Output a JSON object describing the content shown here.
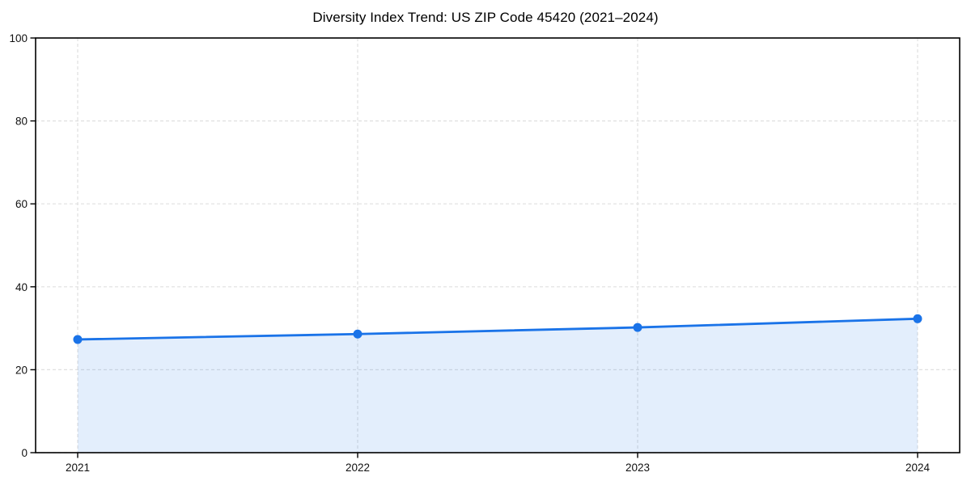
{
  "figure": {
    "background": "#ffffff"
  },
  "chart_data": {
    "type": "area",
    "title": "Diversity Index Trend: US ZIP Code 45420 (2021–2024)",
    "categories": [
      "2021",
      "2022",
      "2023",
      "2024"
    ],
    "series": [
      {
        "name": "Diversity Index",
        "values": [
          27.3,
          28.6,
          30.2,
          32.3
        ]
      }
    ],
    "xlabel": "",
    "ylabel": "",
    "ylim": [
      0,
      100
    ],
    "yticks": [
      0,
      20,
      40,
      60,
      80,
      100
    ],
    "grid": true,
    "grid_style": "dashed",
    "legend": false,
    "colors": {
      "line": "#1a73e8",
      "marker": "#1a73e8",
      "fill": "rgba(26,115,232,0.12)",
      "grid": "#e0e0e0",
      "spine": "#000000",
      "tick": "#000000",
      "text": "#111111"
    }
  }
}
